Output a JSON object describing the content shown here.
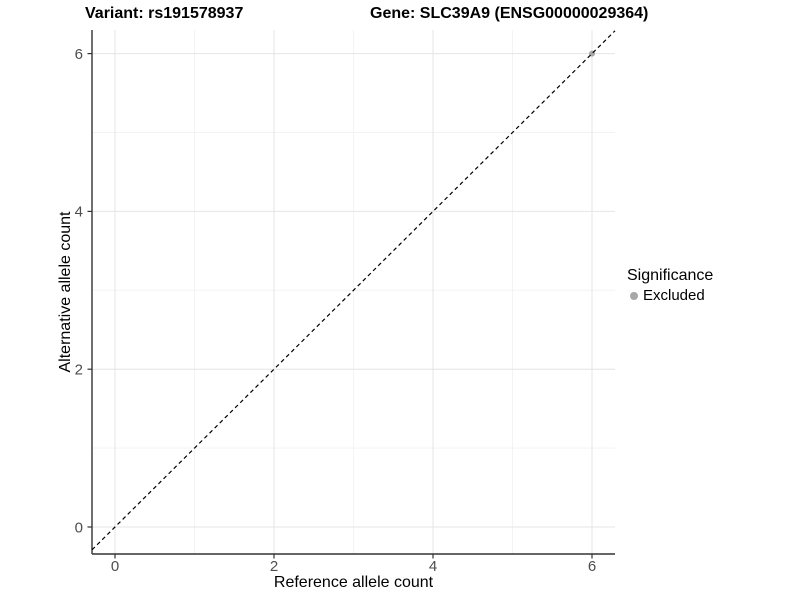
{
  "titles": {
    "left": "Variant: rs191578937",
    "right": "Gene: SLC39A9 (ENSG00000029364)"
  },
  "chart_data": {
    "type": "scatter",
    "xlabel": "Reference allele count",
    "ylabel": "Alternative allele count",
    "xlim": [
      -0.29,
      6.29
    ],
    "ylim": [
      -0.34,
      6.3
    ],
    "x_ticks": [
      0,
      2,
      4,
      6
    ],
    "y_ticks": [
      0,
      2,
      4,
      6
    ],
    "x_minor_ticks": [
      1,
      3,
      5
    ],
    "y_minor_ticks": [
      1,
      3,
      5
    ],
    "grid": "major-and-minor",
    "points": [
      {
        "x": 6,
        "y": 6,
        "series": "Excluded"
      }
    ],
    "series": [
      {
        "name": "Excluded",
        "color": "#a8a8a8"
      }
    ],
    "reference_line": {
      "type": "identity-abline",
      "slope": 1,
      "intercept": 0,
      "linetype": "dashed",
      "color": "#000000"
    },
    "legend": {
      "title": "Significance",
      "position": "right",
      "items": [
        {
          "label": "Excluded",
          "color": "#a8a8a8",
          "marker": "circle"
        }
      ]
    }
  },
  "colors": {
    "background": "#ffffff",
    "grid_major": "#e4e4e4",
    "grid_minor": "#f3f3f3",
    "axis_line": "#333333",
    "tick_mark": "#333333",
    "tick_label": "#4d4d4d"
  }
}
